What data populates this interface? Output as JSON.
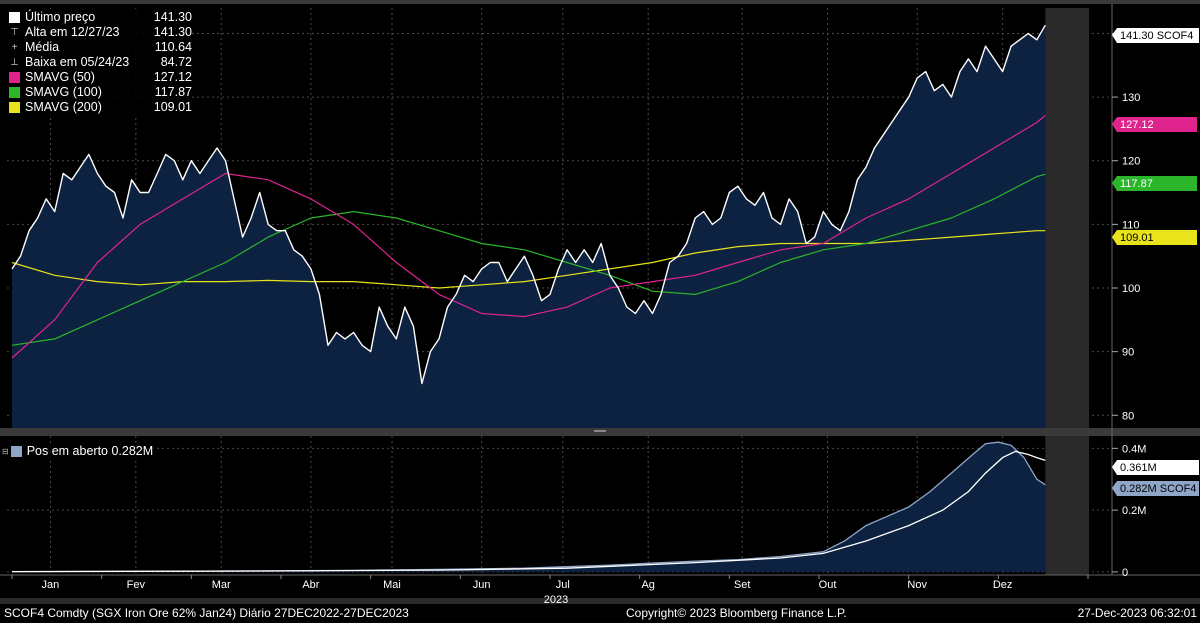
{
  "legend": {
    "items": [
      {
        "label": "Último preço",
        "value": "141.30",
        "color": "#ffffff",
        "marker": "square",
        "mark_text": "□"
      },
      {
        "label": "Alta em 12/27/23",
        "value": "141.30",
        "color": "#cccccc",
        "marker": "high",
        "mark_text": "⊤"
      },
      {
        "label": "Média",
        "value": "110.64",
        "color": "#cccccc",
        "marker": "mean",
        "mark_text": "+"
      },
      {
        "label": "Baixa em 05/24/23",
        "value": "84.72",
        "color": "#cccccc",
        "marker": "low",
        "mark_text": "⊥"
      },
      {
        "label": "SMAVG (50)",
        "value": "127.12",
        "color": "#e0248e",
        "marker": "square"
      },
      {
        "label": "SMAVG (100)",
        "value": "117.87",
        "color": "#2bb52b",
        "marker": "square"
      },
      {
        "label": "SMAVG (200)",
        "value": "109.01",
        "color": "#e9e31c",
        "marker": "square"
      }
    ]
  },
  "oi_legend": {
    "label": "Pos em aberto 0.282M",
    "color": "#8fa6c8"
  },
  "price_tags": [
    {
      "text": "141.30 SCOF4",
      "value": 141.3,
      "bg": "#ffffff",
      "fg": "#000000"
    },
    {
      "text": "127.12",
      "value": 127.12,
      "bg": "#e0248e",
      "fg": "#ffffff"
    },
    {
      "text": "117.87",
      "value": 117.87,
      "bg": "#2bb52b",
      "fg": "#ffffff"
    },
    {
      "text": "109.01",
      "value": 109.01,
      "bg": "#e9e31c",
      "fg": "#000000"
    }
  ],
  "oi_tags": [
    {
      "text": "0.361M",
      "value": 0.361,
      "bg": "#ffffff",
      "fg": "#000000"
    },
    {
      "text": "0.282M SCOF4",
      "value": 0.282,
      "bg": "#8fa6c8",
      "fg": "#000000"
    }
  ],
  "footer": {
    "left": "SCOF4 Comdty (SGX Iron Ore 62%  Jan24)  Diário 27DEC2022-27DEC2023",
    "center": "Copyright© 2023 Bloomberg Finance L.P.",
    "right": "27-Dec-2023 06:32:01"
  },
  "chart_data": [
    {
      "type": "area",
      "title": "",
      "x_unit": "trading day index (Dec 27 2022 = 0, Dec 27 2023 = 252)",
      "x_tick_labels": [
        "Jan",
        "Fev",
        "Mar",
        "Abr",
        "Mai",
        "Jun",
        "Jul",
        "Ag",
        "Set",
        "Out",
        "Nov",
        "Dez"
      ],
      "x_tick_values": [
        9,
        29,
        49,
        70,
        89,
        110,
        129,
        149,
        171,
        191,
        212,
        232
      ],
      "year_label": "2023",
      "ylim": [
        78,
        144
      ],
      "y_ticks": [
        80,
        90,
        100,
        110,
        120,
        130,
        140
      ],
      "series": [
        {
          "name": "Último preço",
          "color": "#ffffff",
          "fill": "#0d2240",
          "points": [
            [
              0,
              103
            ],
            [
              2,
              105
            ],
            [
              4,
              109
            ],
            [
              6,
              111
            ],
            [
              8,
              114
            ],
            [
              10,
              112
            ],
            [
              12,
              118
            ],
            [
              14,
              117
            ],
            [
              16,
              119
            ],
            [
              18,
              121
            ],
            [
              20,
              118
            ],
            [
              22,
              116
            ],
            [
              24,
              115
            ],
            [
              26,
              111
            ],
            [
              28,
              117
            ],
            [
              30,
              115
            ],
            [
              32,
              115
            ],
            [
              34,
              118
            ],
            [
              36,
              121
            ],
            [
              38,
              120
            ],
            [
              40,
              117
            ],
            [
              42,
              120
            ],
            [
              44,
              118
            ],
            [
              46,
              120
            ],
            [
              48,
              122
            ],
            [
              50,
              120
            ],
            [
              52,
              114
            ],
            [
              54,
              108
            ],
            [
              56,
              111
            ],
            [
              58,
              115
            ],
            [
              60,
              110
            ],
            [
              62,
              109
            ],
            [
              64,
              109
            ],
            [
              66,
              106
            ],
            [
              68,
              105
            ],
            [
              70,
              103
            ],
            [
              72,
              99
            ],
            [
              74,
              91
            ],
            [
              76,
              93
            ],
            [
              78,
              92
            ],
            [
              80,
              93
            ],
            [
              82,
              91
            ],
            [
              84,
              90
            ],
            [
              86,
              97
            ],
            [
              88,
              94
            ],
            [
              90,
              92
            ],
            [
              92,
              97
            ],
            [
              94,
              94
            ],
            [
              96,
              85
            ],
            [
              98,
              90
            ],
            [
              100,
              92
            ],
            [
              102,
              97
            ],
            [
              104,
              99
            ],
            [
              106,
              102
            ],
            [
              108,
              101
            ],
            [
              110,
              103
            ],
            [
              112,
              104
            ],
            [
              114,
              104
            ],
            [
              116,
              101
            ],
            [
              118,
              103
            ],
            [
              120,
              105
            ],
            [
              122,
              102
            ],
            [
              124,
              98
            ],
            [
              126,
              99
            ],
            [
              128,
              103
            ],
            [
              130,
              106
            ],
            [
              132,
              104
            ],
            [
              134,
              106
            ],
            [
              136,
              104
            ],
            [
              138,
              107
            ],
            [
              140,
              102
            ],
            [
              142,
              100
            ],
            [
              144,
              97
            ],
            [
              146,
              96
            ],
            [
              148,
              98
            ],
            [
              150,
              96
            ],
            [
              152,
              99
            ],
            [
              154,
              104
            ],
            [
              156,
              105
            ],
            [
              158,
              107
            ],
            [
              160,
              111
            ],
            [
              162,
              112
            ],
            [
              164,
              110
            ],
            [
              166,
              111
            ],
            [
              168,
              115
            ],
            [
              170,
              116
            ],
            [
              172,
              114
            ],
            [
              174,
              113
            ],
            [
              176,
              115
            ],
            [
              178,
              111
            ],
            [
              180,
              110
            ],
            [
              182,
              114
            ],
            [
              184,
              112
            ],
            [
              186,
              107
            ],
            [
              188,
              108
            ],
            [
              190,
              112
            ],
            [
              192,
              110
            ],
            [
              194,
              109
            ],
            [
              196,
              112
            ],
            [
              198,
              117
            ],
            [
              200,
              119
            ],
            [
              202,
              122
            ],
            [
              204,
              124
            ],
            [
              206,
              126
            ],
            [
              208,
              128
            ],
            [
              210,
              130
            ],
            [
              212,
              133
            ],
            [
              214,
              134
            ],
            [
              216,
              131
            ],
            [
              218,
              132
            ],
            [
              220,
              130
            ],
            [
              222,
              134
            ],
            [
              224,
              136
            ],
            [
              226,
              134
            ],
            [
              228,
              138
            ],
            [
              230,
              136
            ],
            [
              232,
              134
            ],
            [
              234,
              138
            ],
            [
              236,
              139
            ],
            [
              238,
              140
            ],
            [
              240,
              139
            ],
            [
              242,
              141.3
            ]
          ]
        },
        {
          "name": "SMAVG (50)",
          "color": "#e0248e",
          "points": [
            [
              0,
              89
            ],
            [
              10,
              95
            ],
            [
              20,
              104
            ],
            [
              30,
              110
            ],
            [
              40,
              114
            ],
            [
              50,
              118
            ],
            [
              60,
              117
            ],
            [
              70,
              114
            ],
            [
              80,
              110
            ],
            [
              90,
              104
            ],
            [
              100,
              99
            ],
            [
              110,
              96
            ],
            [
              120,
              95.5
            ],
            [
              130,
              97
            ],
            [
              140,
              100
            ],
            [
              150,
              101
            ],
            [
              160,
              102
            ],
            [
              170,
              104
            ],
            [
              180,
              106
            ],
            [
              190,
              107
            ],
            [
              200,
              111
            ],
            [
              210,
              114
            ],
            [
              220,
              118
            ],
            [
              230,
              122
            ],
            [
              240,
              126
            ],
            [
              242,
              127.12
            ]
          ]
        },
        {
          "name": "SMAVG (100)",
          "color": "#2bb52b",
          "points": [
            [
              0,
              91
            ],
            [
              10,
              92
            ],
            [
              20,
              95
            ],
            [
              30,
              98
            ],
            [
              40,
              101
            ],
            [
              50,
              104
            ],
            [
              60,
              108
            ],
            [
              70,
              111
            ],
            [
              80,
              112
            ],
            [
              90,
              111
            ],
            [
              100,
              109
            ],
            [
              110,
              107
            ],
            [
              120,
              106
            ],
            [
              130,
              104
            ],
            [
              140,
              102
            ],
            [
              150,
              99.5
            ],
            [
              160,
              99
            ],
            [
              170,
              101
            ],
            [
              180,
              104
            ],
            [
              190,
              106
            ],
            [
              200,
              107
            ],
            [
              210,
              109
            ],
            [
              220,
              111
            ],
            [
              230,
              114
            ],
            [
              240,
              117.5
            ],
            [
              242,
              117.87
            ]
          ]
        },
        {
          "name": "SMAVG (200)",
          "color": "#e9e31c",
          "points": [
            [
              0,
              104
            ],
            [
              10,
              102
            ],
            [
              20,
              101
            ],
            [
              30,
              100.5
            ],
            [
              40,
              101
            ],
            [
              50,
              101
            ],
            [
              60,
              101.2
            ],
            [
              70,
              101
            ],
            [
              80,
              101
            ],
            [
              90,
              100.5
            ],
            [
              100,
              100
            ],
            [
              110,
              100.5
            ],
            [
              120,
              101
            ],
            [
              130,
              102
            ],
            [
              140,
              103
            ],
            [
              150,
              104
            ],
            [
              160,
              105.5
            ],
            [
              170,
              106.5
            ],
            [
              180,
              107
            ],
            [
              190,
              107
            ],
            [
              200,
              107
            ],
            [
              210,
              107.5
            ],
            [
              220,
              108
            ],
            [
              230,
              108.5
            ],
            [
              240,
              109
            ],
            [
              242,
              109.01
            ]
          ]
        }
      ]
    },
    {
      "type": "area",
      "title": "Pos em aberto",
      "ylim": [
        -0.01,
        0.44
      ],
      "y_ticks": [
        0,
        0.2,
        0.4
      ],
      "y_tick_labels": [
        "0",
        "0.2M",
        "0.4M"
      ],
      "series": [
        {
          "name": "Pos em aberto",
          "color": "#8fa6c8",
          "fill": "#0d2240",
          "points": [
            [
              0,
              0.001
            ],
            [
              40,
              0.002
            ],
            [
              80,
              0.005
            ],
            [
              100,
              0.008
            ],
            [
              120,
              0.012
            ],
            [
              140,
              0.022
            ],
            [
              160,
              0.035
            ],
            [
              170,
              0.04
            ],
            [
              180,
              0.05
            ],
            [
              190,
              0.065
            ],
            [
              195,
              0.1
            ],
            [
              200,
              0.15
            ],
            [
              205,
              0.18
            ],
            [
              210,
              0.21
            ],
            [
              215,
              0.26
            ],
            [
              220,
              0.32
            ],
            [
              225,
              0.38
            ],
            [
              228,
              0.415
            ],
            [
              231,
              0.42
            ],
            [
              234,
              0.41
            ],
            [
              237,
              0.37
            ],
            [
              240,
              0.3
            ],
            [
              242,
              0.282
            ]
          ]
        },
        {
          "name": "",
          "color": "#ffffff",
          "points": [
            [
              0,
              0.001
            ],
            [
              60,
              0.003
            ],
            [
              100,
              0.006
            ],
            [
              130,
              0.012
            ],
            [
              160,
              0.03
            ],
            [
              180,
              0.045
            ],
            [
              190,
              0.06
            ],
            [
              200,
              0.1
            ],
            [
              210,
              0.15
            ],
            [
              218,
              0.2
            ],
            [
              224,
              0.26
            ],
            [
              228,
              0.32
            ],
            [
              232,
              0.37
            ],
            [
              235,
              0.39
            ],
            [
              238,
              0.38
            ],
            [
              240,
              0.37
            ],
            [
              242,
              0.361
            ]
          ]
        }
      ]
    }
  ]
}
